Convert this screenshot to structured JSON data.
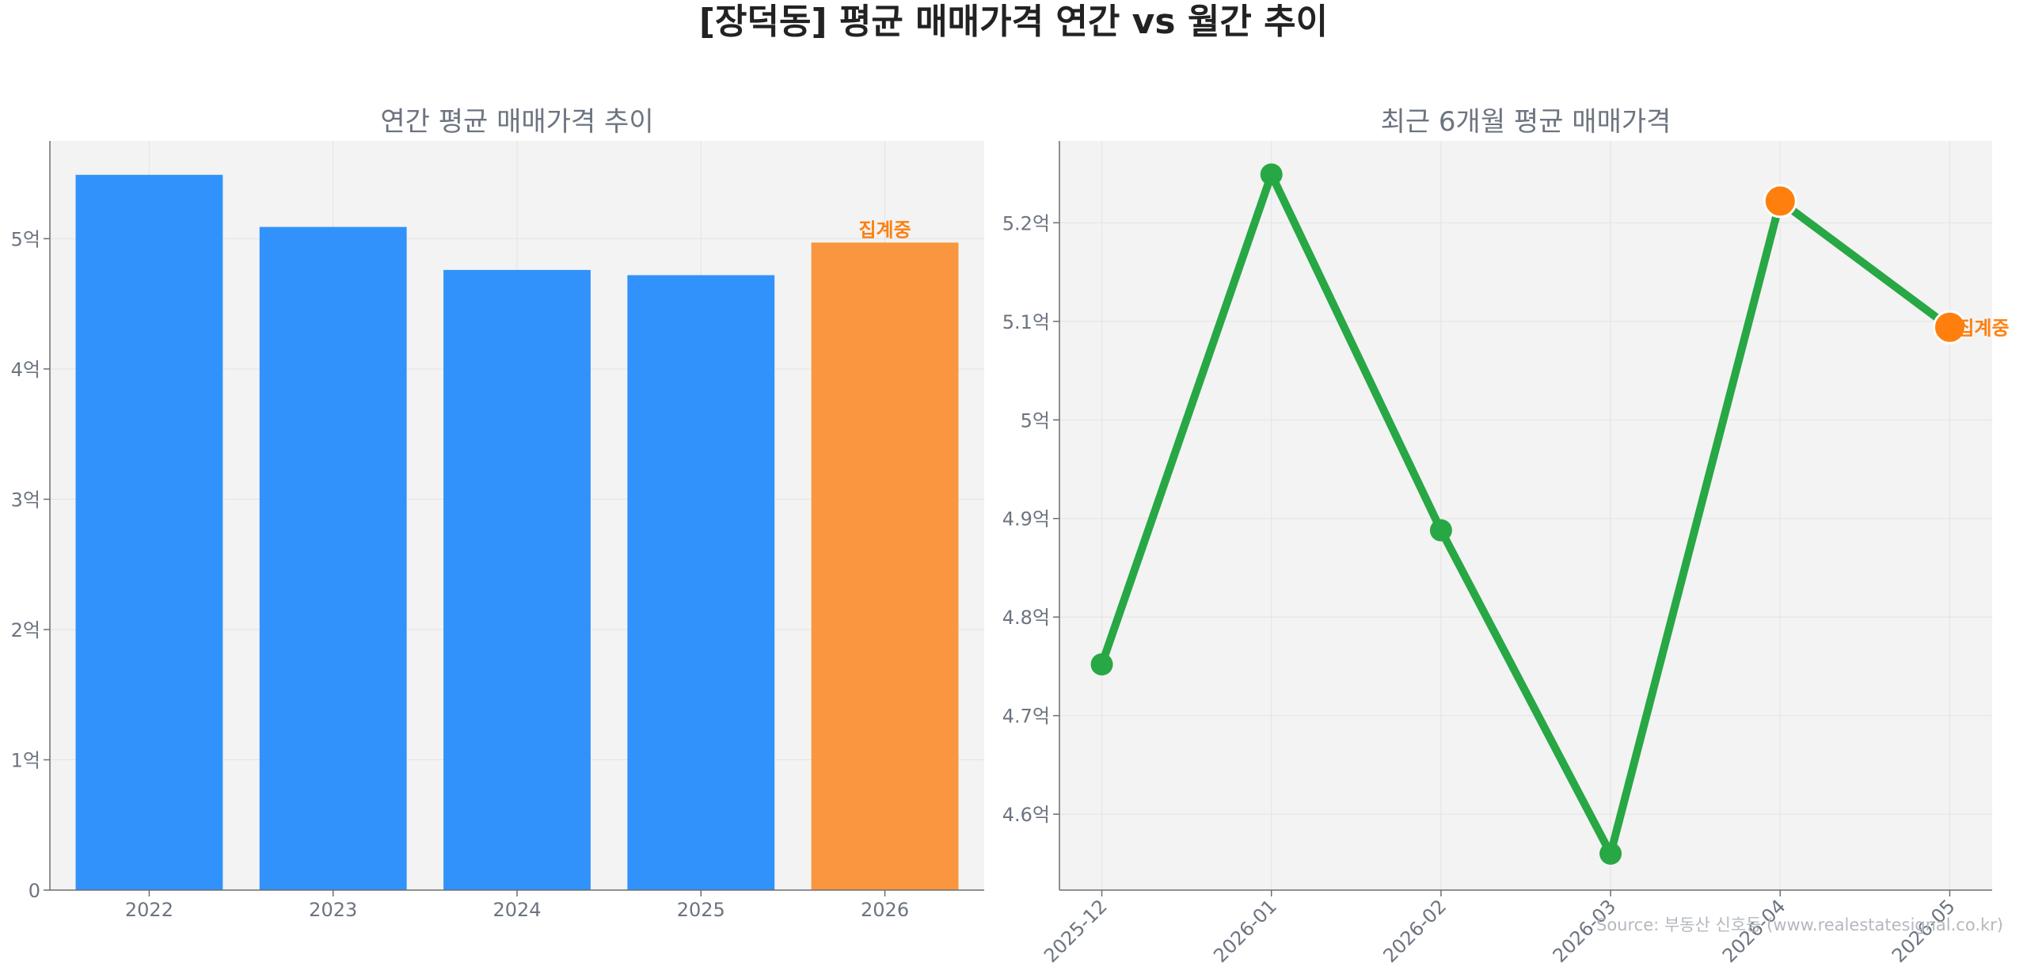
{
  "title": "[장덕동] 평균 매매가격 연간 vs 월간 추이",
  "source": "Source: 부동산 신호등 (www.realestatesignal.co.kr)",
  "colors": {
    "bar": "#3192fb",
    "bar_highlight": "#f9963f",
    "line": "#28a745",
    "highlight_marker": "#ff7f0e",
    "note_text": "#ff7f0e",
    "plot_bg": "#f3f3f3"
  },
  "chart_data": [
    {
      "type": "bar",
      "title": "연간 평균 매매가격 추이",
      "categories": [
        "2022",
        "2023",
        "2024",
        "2025",
        "2026"
      ],
      "values": [
        5.49,
        5.09,
        4.76,
        4.72,
        4.97
      ],
      "highlight_index": 4,
      "annotation": "집계중",
      "ylim": [
        0,
        5.75
      ],
      "yticks": [
        0,
        1,
        2,
        3,
        4,
        5
      ],
      "ytick_labels": [
        "0",
        "1억",
        "2억",
        "3억",
        "4억",
        "5억"
      ],
      "xlabel": "",
      "ylabel": "",
      "grid": true
    },
    {
      "type": "line",
      "title": "최근 6개월 평균 매매가격",
      "categories": [
        "2025-12",
        "2026-01",
        "2026-02",
        "2026-03",
        "2026-04",
        "2026-05"
      ],
      "values": [
        4.752,
        5.249,
        4.888,
        4.56,
        5.222,
        5.094
      ],
      "highlight_indices": [
        4,
        5
      ],
      "annotation": "집계중",
      "ylim": [
        4.523,
        5.283
      ],
      "yticks": [
        4.6,
        4.7,
        4.8,
        4.9,
        5.0,
        5.1,
        5.2
      ],
      "ytick_labels": [
        "4.6억",
        "4.7억",
        "4.8억",
        "4.9억",
        "5억",
        "5.1억",
        "5.2억"
      ],
      "xlabel": "",
      "ylabel": "",
      "grid": true
    }
  ]
}
